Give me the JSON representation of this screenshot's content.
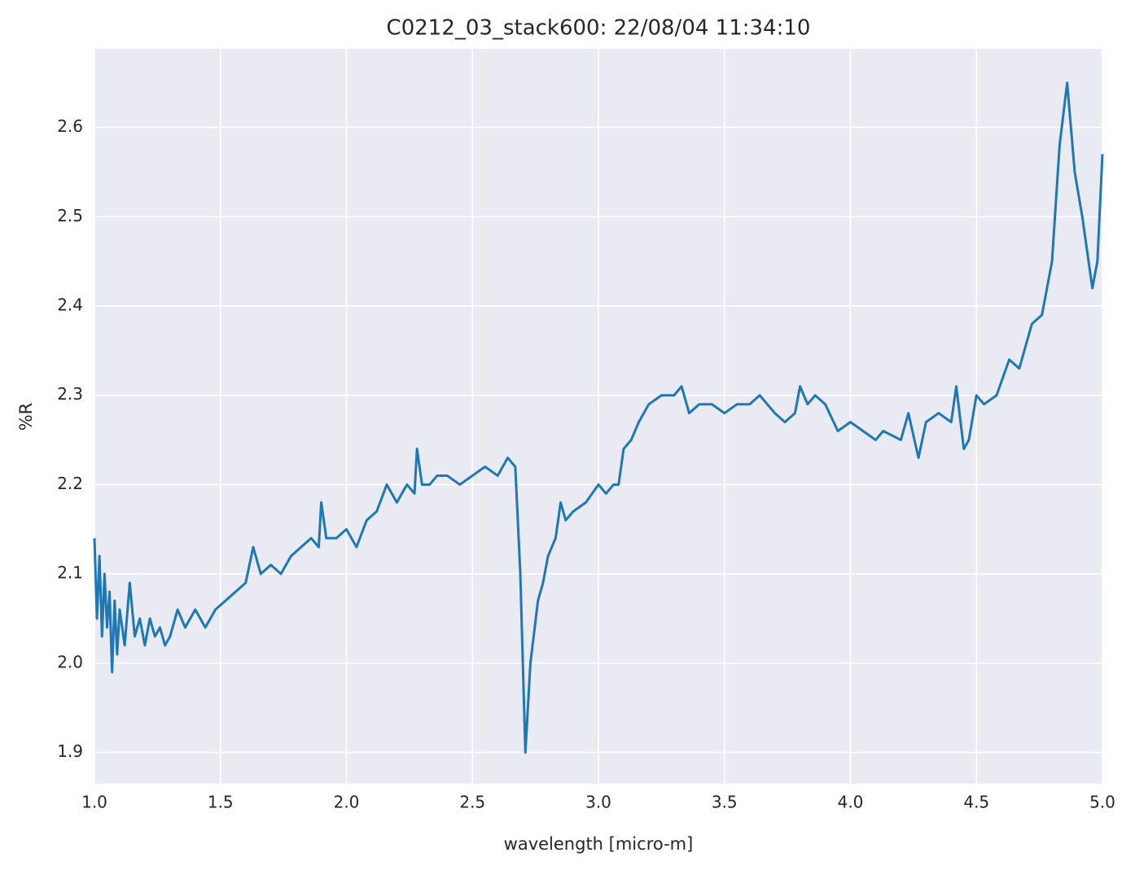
{
  "chart_data": {
    "type": "line",
    "title": "C0212_03_stack600:  22/08/04 11:34:10",
    "xlabel": "wavelength [micro-m]",
    "ylabel": "%R",
    "grid": true,
    "xlim": [
      1,
      5
    ],
    "ylim": [
      1.865,
      2.688
    ],
    "xticks": [
      {
        "value": 1,
        "label": "1.0"
      },
      1.5,
      {
        "value": 2,
        "label": "2.0"
      },
      2.5,
      {
        "value": 3,
        "label": "3.0"
      },
      3.5,
      {
        "value": 4,
        "label": "4.0"
      },
      4.5,
      {
        "value": 5,
        "label": "5.0"
      }
    ],
    "yticks": [
      1.9,
      {
        "value": 2,
        "label": "2.0"
      },
      2.1,
      2.2,
      2.3,
      2.4,
      2.5,
      2.6
    ],
    "x": [
      1.0,
      1.01,
      1.02,
      1.03,
      1.04,
      1.05,
      1.06,
      1.07,
      1.08,
      1.09,
      1.1,
      1.12,
      1.14,
      1.16,
      1.18,
      1.2,
      1.22,
      1.24,
      1.26,
      1.28,
      1.3,
      1.33,
      1.36,
      1.4,
      1.44,
      1.48,
      1.52,
      1.56,
      1.6,
      1.63,
      1.66,
      1.7,
      1.74,
      1.78,
      1.82,
      1.86,
      1.89,
      1.9,
      1.92,
      1.96,
      2.0,
      2.04,
      2.08,
      2.12,
      2.16,
      2.2,
      2.24,
      2.27,
      2.28,
      2.3,
      2.33,
      2.36,
      2.4,
      2.45,
      2.5,
      2.55,
      2.6,
      2.64,
      2.67,
      2.69,
      2.71,
      2.73,
      2.76,
      2.78,
      2.8,
      2.83,
      2.85,
      2.87,
      2.9,
      2.95,
      3.0,
      3.03,
      3.06,
      3.08,
      3.1,
      3.13,
      3.16,
      3.2,
      3.25,
      3.3,
      3.33,
      3.36,
      3.4,
      3.45,
      3.5,
      3.55,
      3.6,
      3.64,
      3.7,
      3.74,
      3.78,
      3.8,
      3.83,
      3.86,
      3.9,
      3.95,
      4.0,
      4.05,
      4.1,
      4.13,
      4.2,
      4.23,
      4.27,
      4.3,
      4.35,
      4.4,
      4.42,
      4.45,
      4.47,
      4.5,
      4.53,
      4.58,
      4.63,
      4.67,
      4.72,
      4.76,
      4.8,
      4.83,
      4.86,
      4.89,
      4.92,
      4.96,
      4.98,
      5.0
    ],
    "series": [
      {
        "name": "%R",
        "color": "#1f77b4",
        "values": [
          2.14,
          2.05,
          2.12,
          2.03,
          2.1,
          2.04,
          2.08,
          1.99,
          2.07,
          2.01,
          2.06,
          2.02,
          2.09,
          2.03,
          2.05,
          2.02,
          2.05,
          2.03,
          2.04,
          2.02,
          2.03,
          2.06,
          2.04,
          2.06,
          2.04,
          2.06,
          2.07,
          2.08,
          2.09,
          2.13,
          2.1,
          2.11,
          2.1,
          2.12,
          2.13,
          2.14,
          2.13,
          2.18,
          2.14,
          2.14,
          2.15,
          2.13,
          2.16,
          2.17,
          2.2,
          2.18,
          2.2,
          2.19,
          2.24,
          2.2,
          2.2,
          2.21,
          2.21,
          2.2,
          2.21,
          2.22,
          2.21,
          2.23,
          2.22,
          2.1,
          1.9,
          2.0,
          2.07,
          2.09,
          2.12,
          2.14,
          2.18,
          2.16,
          2.17,
          2.18,
          2.2,
          2.19,
          2.2,
          2.2,
          2.24,
          2.25,
          2.27,
          2.29,
          2.3,
          2.3,
          2.31,
          2.28,
          2.29,
          2.29,
          2.28,
          2.29,
          2.29,
          2.3,
          2.28,
          2.27,
          2.28,
          2.31,
          2.29,
          2.3,
          2.29,
          2.26,
          2.27,
          2.26,
          2.25,
          2.26,
          2.25,
          2.28,
          2.23,
          2.27,
          2.28,
          2.27,
          2.31,
          2.24,
          2.25,
          2.3,
          2.29,
          2.3,
          2.34,
          2.33,
          2.38,
          2.39,
          2.45,
          2.58,
          2.65,
          2.55,
          2.5,
          2.42,
          2.45,
          2.57
        ]
      }
    ]
  }
}
